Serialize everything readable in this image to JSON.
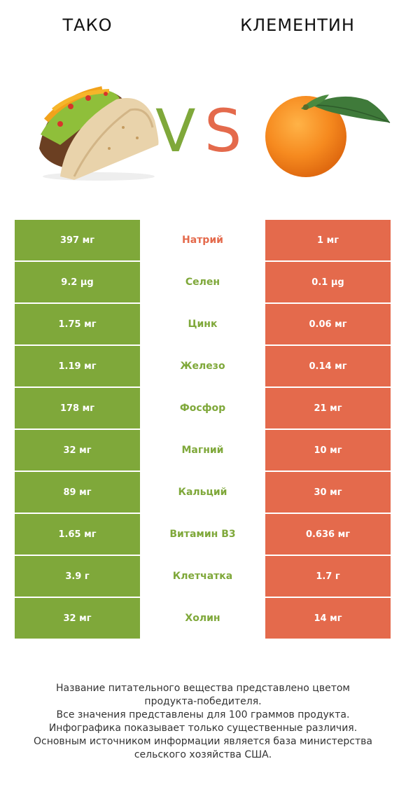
{
  "header": {
    "left_title": "ТАКО",
    "right_title": "КЛЕМЕНТИН",
    "vs_v": "V",
    "vs_s": "S"
  },
  "colors": {
    "left_green": "#7fa83a",
    "right_orange": "#e46a4c"
  },
  "images": {
    "left": "taco-image",
    "right": "clementine-image"
  },
  "rows": [
    {
      "left": "397 мг",
      "nutrient": "Натрий",
      "right": "1 мг",
      "winner": "right"
    },
    {
      "left": "9.2 µg",
      "nutrient": "Селен",
      "right": "0.1 µg",
      "winner": "left"
    },
    {
      "left": "1.75 мг",
      "nutrient": "Цинк",
      "right": "0.06 мг",
      "winner": "left"
    },
    {
      "left": "1.19 мг",
      "nutrient": "Железо",
      "right": "0.14 мг",
      "winner": "left"
    },
    {
      "left": "178 мг",
      "nutrient": "Фосфор",
      "right": "21 мг",
      "winner": "left"
    },
    {
      "left": "32 мг",
      "nutrient": "Магний",
      "right": "10 мг",
      "winner": "left"
    },
    {
      "left": "89 мг",
      "nutrient": "Кальций",
      "right": "30 мг",
      "winner": "left"
    },
    {
      "left": "1.65 мг",
      "nutrient": "Витамин B3",
      "right": "0.636 мг",
      "winner": "left"
    },
    {
      "left": "3.9 г",
      "nutrient": "Клетчатка",
      "right": "1.7 г",
      "winner": "left"
    },
    {
      "left": "32 мг",
      "nutrient": "Холин",
      "right": "14 мг",
      "winner": "left"
    }
  ],
  "footer": {
    "line1": "Название питательного вещества представлено цветом",
    "line2": "продукта-победителя.",
    "line3": "Все значения представлены для 100 граммов продукта.",
    "line4": "Инфографика показывает только существенные различия.",
    "line5": "Основным источником информации является база министерства",
    "line6": "сельского хозяйства США."
  }
}
